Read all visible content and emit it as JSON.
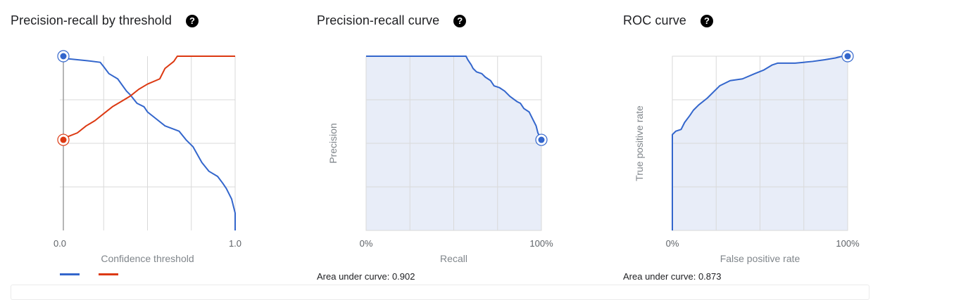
{
  "panels": [
    {
      "title": "Precision-recall by threshold",
      "help_icon": "help-circle-icon"
    },
    {
      "title": "Precision-recall curve",
      "help_icon": "help-circle-icon",
      "auc_text": "Area under curve: 0.902"
    },
    {
      "title": "ROC curve",
      "help_icon": "help-circle-icon",
      "auc_text": "Area under curve: 0.873"
    }
  ],
  "colors": {
    "precision": "#3366cc",
    "recall": "#dc3912",
    "fill": "#e8edf8",
    "grid": "#d9d9d9"
  },
  "chart_data": [
    {
      "type": "line",
      "title": "Precision-recall by threshold",
      "xlabel": "Confidence threshold",
      "ylabel": "",
      "xlim": [
        0,
        1
      ],
      "ylim": [
        0,
        1
      ],
      "x_tick_labels": [
        "0.0",
        "1.0"
      ],
      "grid": true,
      "legend": "bottom-left",
      "series": [
        {
          "values": [
            [
              0,
              1
            ],
            [
              0.03,
              1
            ],
            [
              0.05,
              0.985
            ],
            [
              0.1,
              0.98
            ],
            [
              0.15,
              0.975
            ],
            [
              0.23,
              0.965
            ],
            [
              0.25,
              0.94
            ],
            [
              0.28,
              0.9
            ],
            [
              0.33,
              0.87
            ],
            [
              0.38,
              0.8
            ],
            [
              0.4,
              0.78
            ],
            [
              0.44,
              0.73
            ],
            [
              0.48,
              0.71
            ],
            [
              0.5,
              0.68
            ],
            [
              0.55,
              0.64
            ],
            [
              0.6,
              0.6
            ],
            [
              0.68,
              0.57
            ],
            [
              0.72,
              0.52
            ],
            [
              0.76,
              0.48
            ],
            [
              0.81,
              0.39
            ],
            [
              0.85,
              0.34
            ],
            [
              0.9,
              0.31
            ],
            [
              0.93,
              0.27
            ],
            [
              0.95,
              0.24
            ],
            [
              0.98,
              0.18
            ],
            [
              1,
              0.1
            ],
            [
              1,
              0
            ]
          ]
        },
        {
          "values": [
            [
              0,
              0.52
            ],
            [
              0.05,
              0.54
            ],
            [
              0.1,
              0.56
            ],
            [
              0.15,
              0.6
            ],
            [
              0.2,
              0.63
            ],
            [
              0.25,
              0.67
            ],
            [
              0.3,
              0.71
            ],
            [
              0.35,
              0.74
            ],
            [
              0.4,
              0.77
            ],
            [
              0.45,
              0.81
            ],
            [
              0.5,
              0.84
            ],
            [
              0.57,
              0.87
            ],
            [
              0.6,
              0.93
            ],
            [
              0.65,
              0.97
            ],
            [
              0.67,
              1
            ],
            [
              1,
              1
            ]
          ]
        }
      ],
      "markers": [
        {
          "series": 0,
          "x": 0,
          "y": 1
        },
        {
          "series": 1,
          "x": 0,
          "y": 0.52
        }
      ]
    },
    {
      "type": "area",
      "title": "Precision-recall curve",
      "xlabel": "Recall",
      "ylabel": "Precision",
      "xlim": [
        0,
        1
      ],
      "ylim": [
        0,
        1
      ],
      "x_tick_labels": [
        "0%",
        "100%"
      ],
      "grid": true,
      "series": [
        {
          "values": [
            [
              0,
              1
            ],
            [
              0.57,
              1
            ],
            [
              0.58,
              0.98
            ],
            [
              0.6,
              0.95
            ],
            [
              0.61,
              0.93
            ],
            [
              0.63,
              0.91
            ],
            [
              0.66,
              0.9
            ],
            [
              0.68,
              0.88
            ],
            [
              0.71,
              0.86
            ],
            [
              0.73,
              0.83
            ],
            [
              0.76,
              0.82
            ],
            [
              0.79,
              0.8
            ],
            [
              0.82,
              0.77
            ],
            [
              0.86,
              0.74
            ],
            [
              0.88,
              0.73
            ],
            [
              0.9,
              0.7
            ],
            [
              0.93,
              0.68
            ],
            [
              0.95,
              0.64
            ],
            [
              0.97,
              0.6
            ],
            [
              0.98,
              0.56
            ],
            [
              1,
              0.52
            ]
          ]
        }
      ],
      "markers": [
        {
          "series": 0,
          "x": 1,
          "y": 0.52
        }
      ]
    },
    {
      "type": "area",
      "title": "ROC curve",
      "xlabel": "False positive rate",
      "ylabel": "True positive rate",
      "xlim": [
        0,
        1
      ],
      "ylim": [
        0,
        1
      ],
      "x_tick_labels": [
        "0%",
        "100%"
      ],
      "grid": true,
      "series": [
        {
          "values": [
            [
              0,
              0
            ],
            [
              0,
              0.55
            ],
            [
              0.02,
              0.57
            ],
            [
              0.05,
              0.58
            ],
            [
              0.07,
              0.62
            ],
            [
              0.1,
              0.66
            ],
            [
              0.12,
              0.69
            ],
            [
              0.15,
              0.72
            ],
            [
              0.2,
              0.76
            ],
            [
              0.24,
              0.8
            ],
            [
              0.27,
              0.83
            ],
            [
              0.33,
              0.86
            ],
            [
              0.4,
              0.87
            ],
            [
              0.47,
              0.9
            ],
            [
              0.52,
              0.92
            ],
            [
              0.57,
              0.95
            ],
            [
              0.6,
              0.96
            ],
            [
              0.7,
              0.96
            ],
            [
              0.8,
              0.97
            ],
            [
              0.87,
              0.98
            ],
            [
              0.93,
              0.99
            ],
            [
              0.97,
              1
            ],
            [
              1,
              1
            ]
          ]
        }
      ],
      "markers": [
        {
          "series": 0,
          "x": 1,
          "y": 1
        }
      ]
    }
  ]
}
